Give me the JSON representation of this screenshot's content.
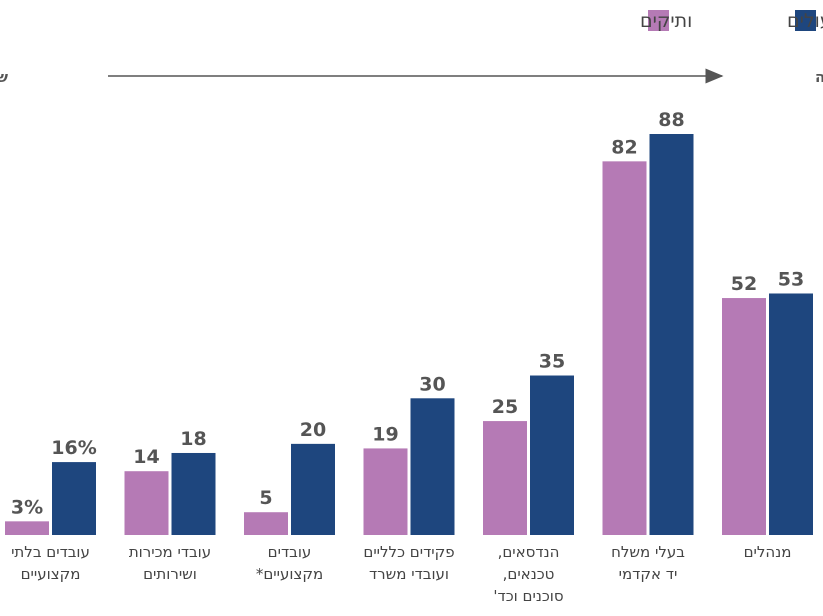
{
  "chart_data": {
    "type": "bar",
    "categories": [
      "עובדים בלתי\nמקצועיים",
      "עובדי מכירות\nושירותים",
      "עובדים\nמקצועיים*",
      "פקידים כלליים\nועובדי משרד",
      "הנדסאים,\nטכנאים,\nסוכנים וכד'",
      "בעלי משלח\nיד אקדמי",
      "מנהלים"
    ],
    "series": [
      {
        "name": "ותיקים",
        "color": "#b57ab5",
        "values": [
          3,
          14,
          5,
          19,
          25,
          82,
          52
        ],
        "value_labels": [
          "3%",
          "14",
          "5",
          "19",
          "25",
          "82",
          "52"
        ]
      },
      {
        "name": "עולים",
        "color": "#1e467e",
        "values": [
          16,
          18,
          20,
          30,
          35,
          88,
          53
        ],
        "value_labels": [
          "16%",
          "18",
          "20",
          "30",
          "35",
          "88",
          "53"
        ]
      }
    ],
    "annotations": {
      "high": "שכר גבוה",
      "low": "שכר נמוך"
    }
  }
}
